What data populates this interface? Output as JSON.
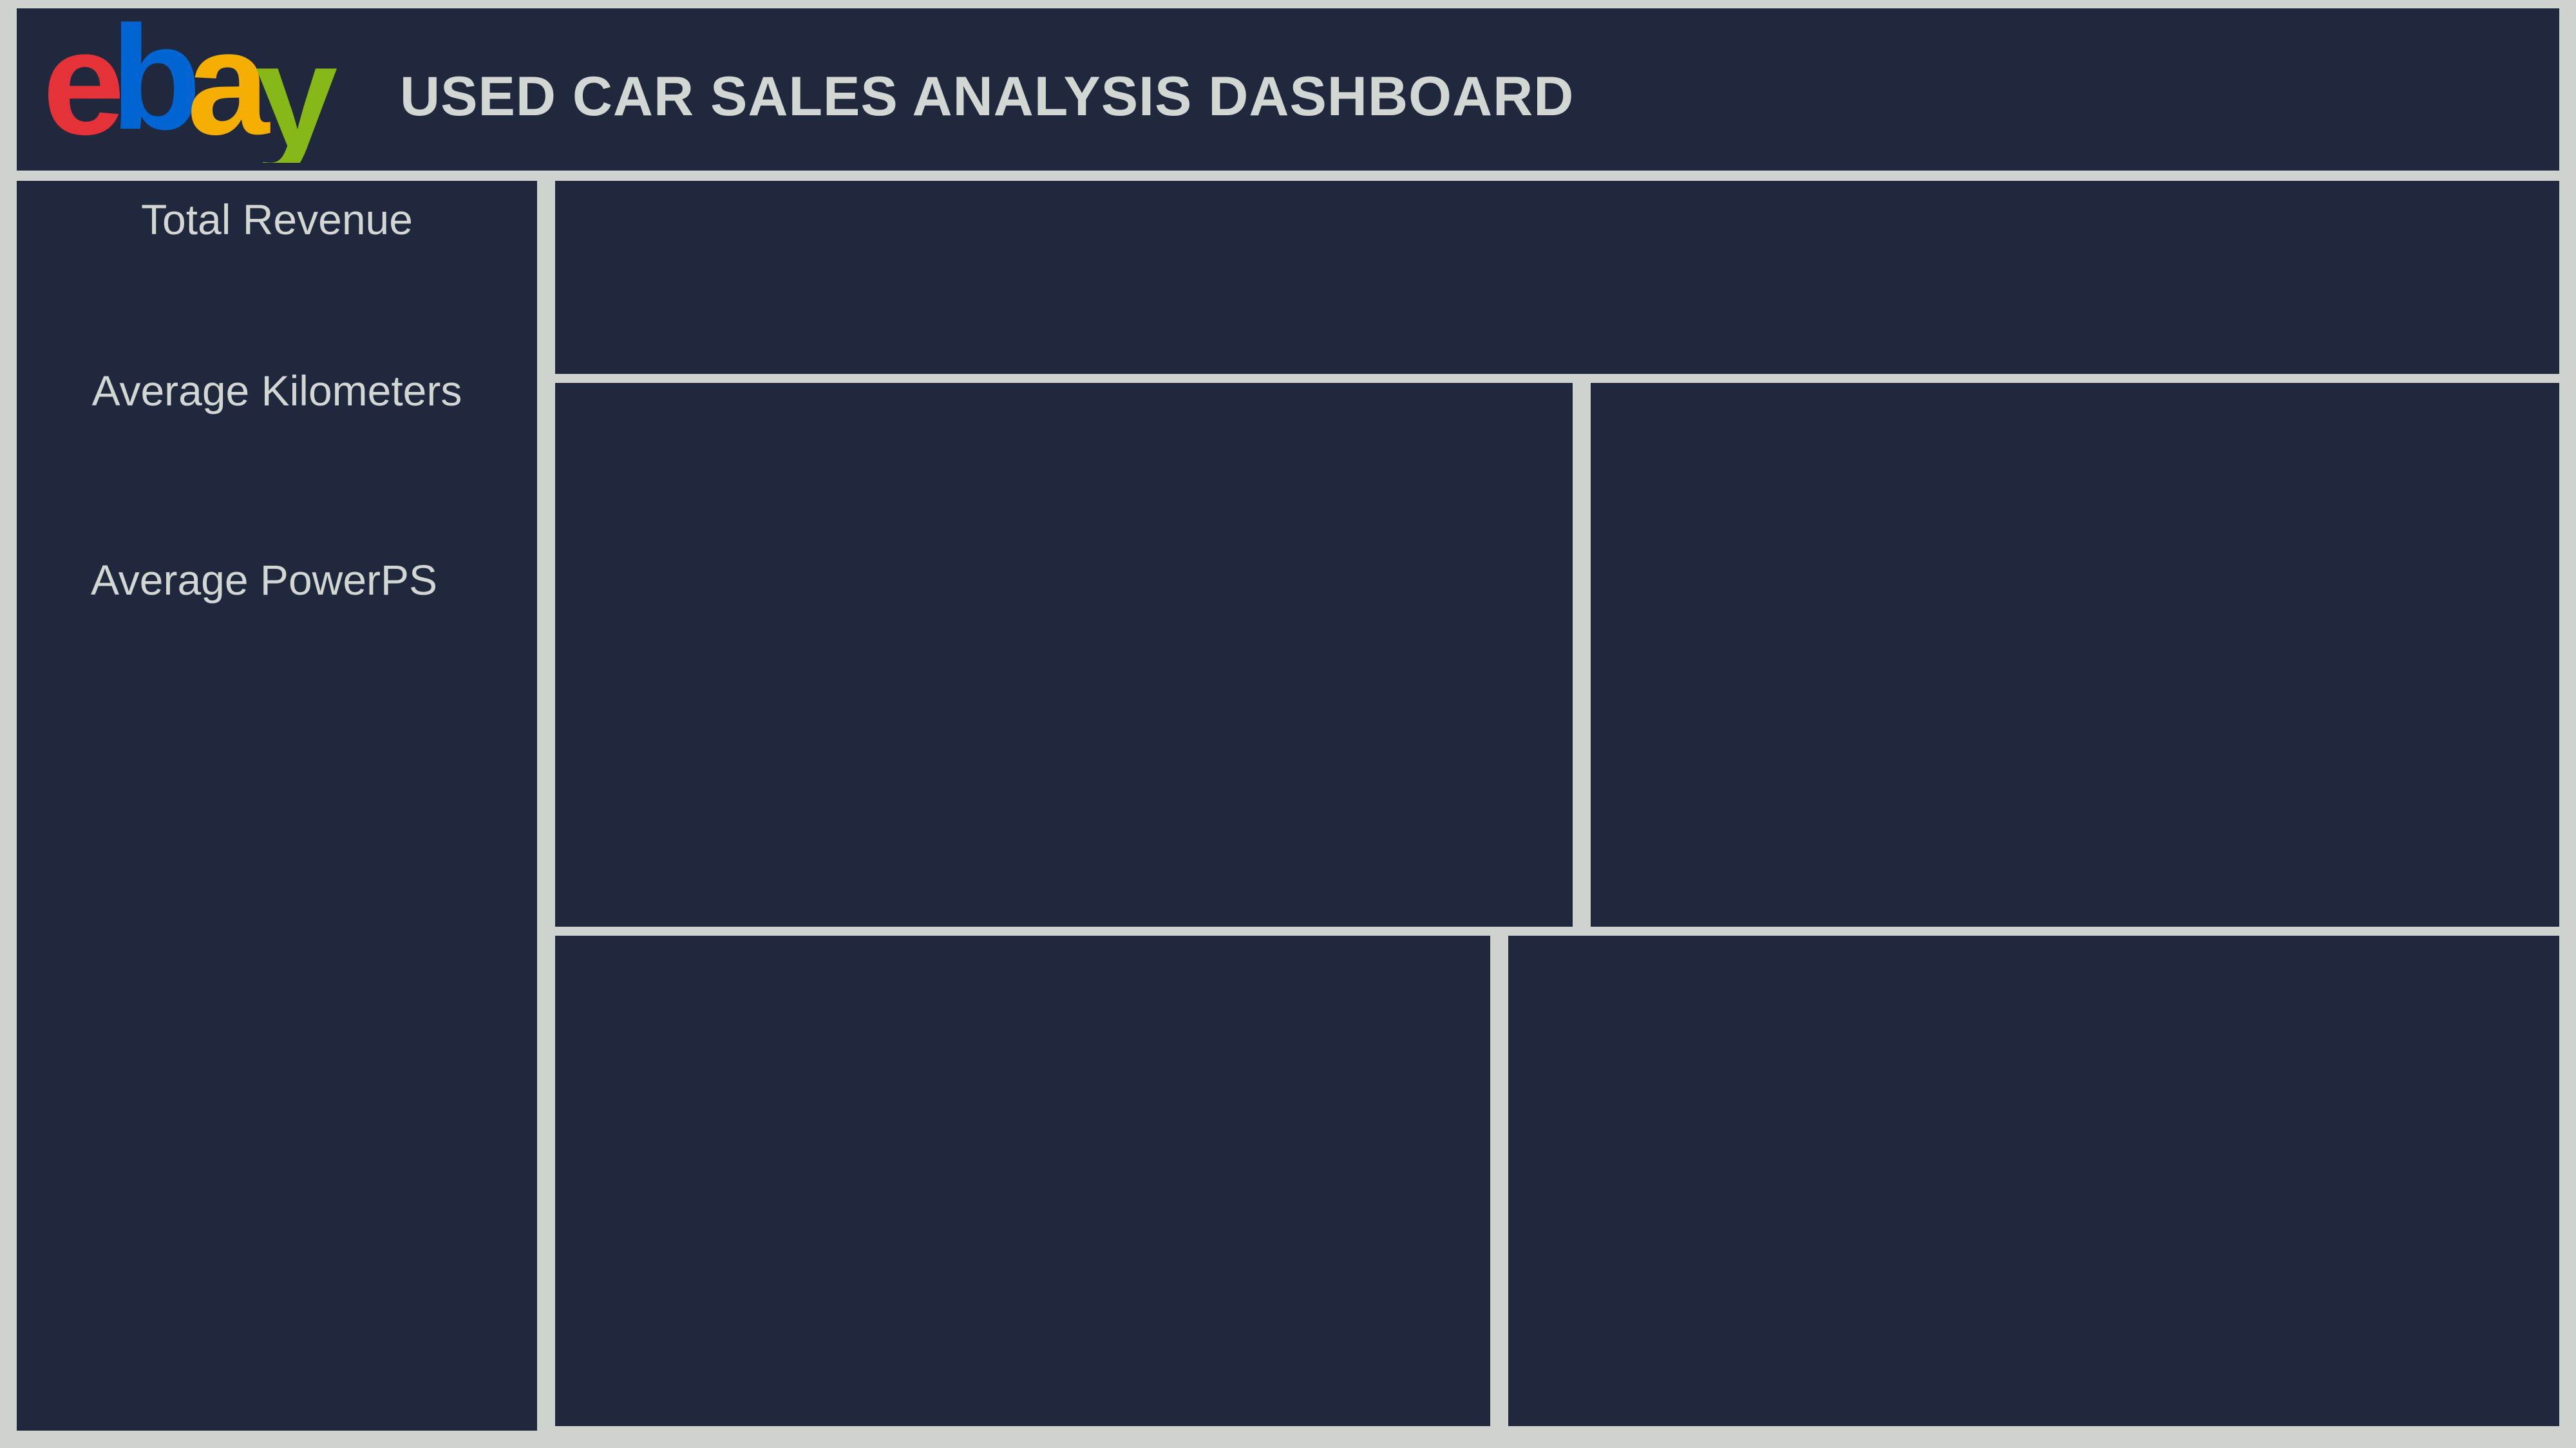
{
  "header": {
    "logo_text": "ebay",
    "title": "USED CAR SALES ANALYSIS DASHBOARD"
  },
  "sidebar": {
    "kpis": [
      {
        "label": "Total Revenue"
      },
      {
        "label": "Average Kilometers"
      },
      {
        "label": "Average PowerPS"
      }
    ]
  },
  "colors": {
    "background": "#cfd3d0",
    "panel": "#1f283c",
    "text": "#d3d7d4",
    "logo_e": "#e53238",
    "logo_b": "#0064d2",
    "logo_a": "#f5af02",
    "logo_y": "#86b817"
  },
  "icons": [
    "ebay-logo"
  ]
}
